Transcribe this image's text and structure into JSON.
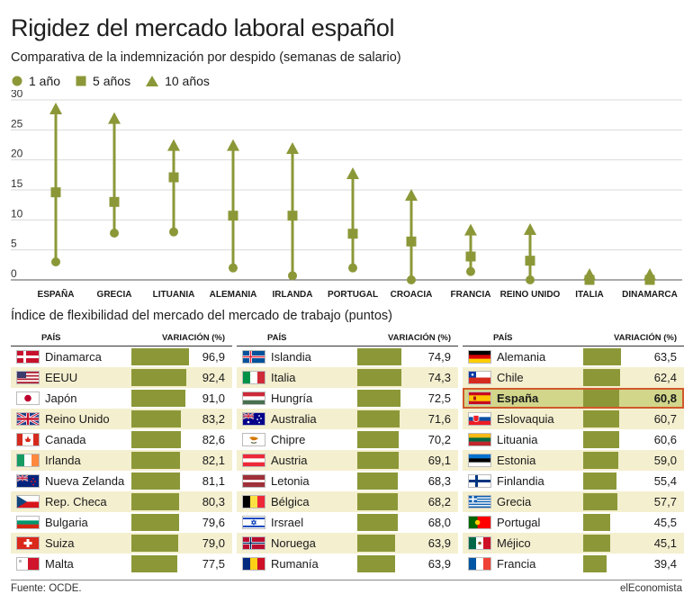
{
  "title": "Rigidez del mercado laboral español",
  "colors": {
    "olive": "#8c9838",
    "row_alt": "#f4efcf",
    "highlight_fill": "#d2d68b",
    "highlight_border": "#d1592b"
  },
  "chart_data": [
    {
      "type": "scatter",
      "subtitle": "Comparativa de la indemnización por despido (semanas de salario)",
      "legend": [
        "1 año",
        "5 años",
        "10 años"
      ],
      "legend_position": "top-left",
      "categories": [
        "ESPAÑA",
        "GRECIA",
        "LITUANIA",
        "ALEMANIA",
        "IRLANDA",
        "PORTUGAL",
        "CROACIA",
        "FRANCIA",
        "REINO UNIDO",
        "ITALIA",
        "DINAMARCA"
      ],
      "series": [
        {
          "name": "1 año",
          "values": [
            3,
            7.8,
            8,
            2,
            0.7,
            2,
            0,
            1.4,
            0,
            0,
            0
          ]
        },
        {
          "name": "5 años",
          "values": [
            14.6,
            13,
            17.1,
            10.7,
            10.7,
            7.7,
            6.4,
            3.9,
            3.2,
            0,
            0
          ]
        },
        {
          "name": "10 años",
          "values": [
            28.5,
            26.9,
            22.4,
            22.4,
            21.9,
            17.7,
            14.1,
            8.3,
            8.4,
            0.9,
            0.9
          ]
        }
      ],
      "yticks": [
        0,
        5,
        10,
        15,
        20,
        25,
        30
      ],
      "ylim": [
        0,
        30
      ],
      "grid": true
    },
    {
      "type": "table",
      "title": "Índice de flexibilidad del mercado del mercado de trabajo (puntos)",
      "columns": [
        "PAÍS",
        "VARIACIÓN (%)"
      ],
      "bar_max": 100,
      "tables": [
        [
          {
            "country": "Dinamarca",
            "value": 96.9,
            "label": "96,9",
            "flag": "denmark-flag"
          },
          {
            "country": "EEUU",
            "value": 92.4,
            "label": "92,4",
            "flag": "usa-flag"
          },
          {
            "country": "Japón",
            "value": 91.0,
            "label": "91,0",
            "flag": "japan-flag"
          },
          {
            "country": "Reino Unido",
            "value": 83.2,
            "label": "83,2",
            "flag": "uk-flag"
          },
          {
            "country": "Canada",
            "value": 82.6,
            "label": "82,6",
            "flag": "canada-flag"
          },
          {
            "country": "Irlanda",
            "value": 82.1,
            "label": "82,1",
            "flag": "ireland-flag"
          },
          {
            "country": "Nueva Zelanda",
            "value": 81.1,
            "label": "81,1",
            "flag": "new-zealand-flag"
          },
          {
            "country": "Rep. Checa",
            "value": 80.3,
            "label": "80,3",
            "flag": "czech-flag"
          },
          {
            "country": "Bulgaria",
            "value": 79.6,
            "label": "79,6",
            "flag": "bulgaria-flag"
          },
          {
            "country": "Suiza",
            "value": 79.0,
            "label": "79,0",
            "flag": "switzerland-flag"
          },
          {
            "country": "Malta",
            "value": 77.5,
            "label": "77,5",
            "flag": "malta-flag"
          }
        ],
        [
          {
            "country": "Islandia",
            "value": 74.9,
            "label": "74,9",
            "flag": "iceland-flag"
          },
          {
            "country": "Italia",
            "value": 74.3,
            "label": "74,3",
            "flag": "italy-flag"
          },
          {
            "country": "Hungría",
            "value": 72.5,
            "label": "72,5",
            "flag": "hungary-flag"
          },
          {
            "country": "Australia",
            "value": 71.6,
            "label": "71,6",
            "flag": "australia-flag"
          },
          {
            "country": "Chipre",
            "value": 70.2,
            "label": "70,2",
            "flag": "cyprus-flag"
          },
          {
            "country": "Austria",
            "value": 69.1,
            "label": "69,1",
            "flag": "austria-flag"
          },
          {
            "country": "Letonia",
            "value": 68.3,
            "label": "68,3",
            "flag": "latvia-flag"
          },
          {
            "country": "Bélgica",
            "value": 68.2,
            "label": "68,2",
            "flag": "belgium-flag"
          },
          {
            "country": "Irsrael",
            "value": 68.0,
            "label": "68,0",
            "flag": "israel-flag"
          },
          {
            "country": "Noruega",
            "value": 63.9,
            "label": "63,9",
            "flag": "norway-flag"
          },
          {
            "country": "Rumanía",
            "value": 63.9,
            "label": "63,9",
            "flag": "romania-flag"
          }
        ],
        [
          {
            "country": "Alemania",
            "value": 63.5,
            "label": "63,5",
            "flag": "germany-flag"
          },
          {
            "country": "Chile",
            "value": 62.4,
            "label": "62,4",
            "flag": "chile-flag"
          },
          {
            "country": "España",
            "value": 60.8,
            "label": "60,8",
            "flag": "spain-flag",
            "highlight": true
          },
          {
            "country": "Eslovaquia",
            "value": 60.7,
            "label": "60,7",
            "flag": "slovakia-flag"
          },
          {
            "country": "Lituania",
            "value": 60.6,
            "label": "60,6",
            "flag": "lithuania-flag"
          },
          {
            "country": "Estonia",
            "value": 59.0,
            "label": "59,0",
            "flag": "estonia-flag"
          },
          {
            "country": "Finlandia",
            "value": 55.4,
            "label": "55,4",
            "flag": "finland-flag"
          },
          {
            "country": "Grecia",
            "value": 57.7,
            "label": "57,7",
            "flag": "greece-flag"
          },
          {
            "country": "Portugal",
            "value": 45.5,
            "label": "45,5",
            "flag": "portugal-flag"
          },
          {
            "country": "Méjico",
            "value": 45.1,
            "label": "45,1",
            "flag": "mexico-flag"
          },
          {
            "country": "Francia",
            "value": 39.4,
            "label": "39,4",
            "flag": "france-flag"
          }
        ]
      ]
    }
  ],
  "source": "Fuente: OCDE.",
  "brand": "elEconomista"
}
